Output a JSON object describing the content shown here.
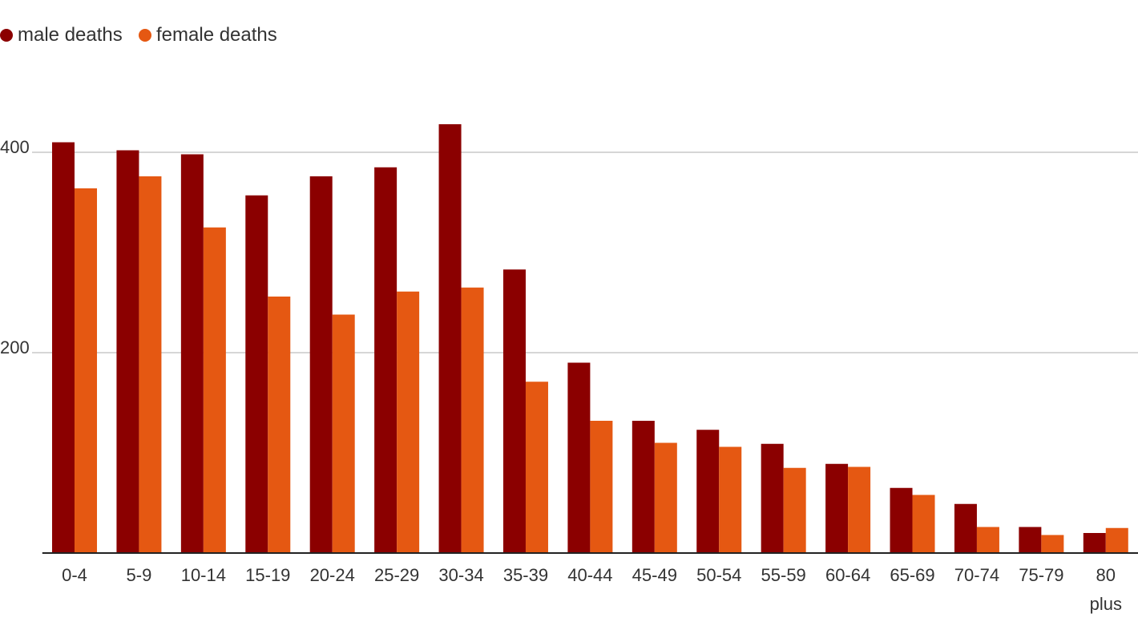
{
  "chart_data": {
    "type": "bar",
    "categories": [
      "0-4",
      "5-9",
      "10-14",
      "15-19",
      "20-24",
      "25-29",
      "30-34",
      "35-39",
      "40-44",
      "45-49",
      "50-54",
      "55-59",
      "60-64",
      "65-69",
      "70-74",
      "75-79",
      "80 plus"
    ],
    "series": [
      {
        "name": "male deaths",
        "color": "#8b0000",
        "values": [
          410,
          402,
          398,
          357,
          376,
          385,
          428,
          283,
          190,
          132,
          123,
          109,
          89,
          65,
          49,
          26,
          20
        ]
      },
      {
        "name": "female deaths",
        "color": "#e55812",
        "values": [
          364,
          376,
          325,
          256,
          238,
          261,
          265,
          171,
          132,
          110,
          106,
          85,
          86,
          58,
          26,
          18,
          25
        ]
      }
    ],
    "ylim": [
      0,
      480
    ],
    "yticks": [
      200,
      400
    ],
    "grid": true
  }
}
